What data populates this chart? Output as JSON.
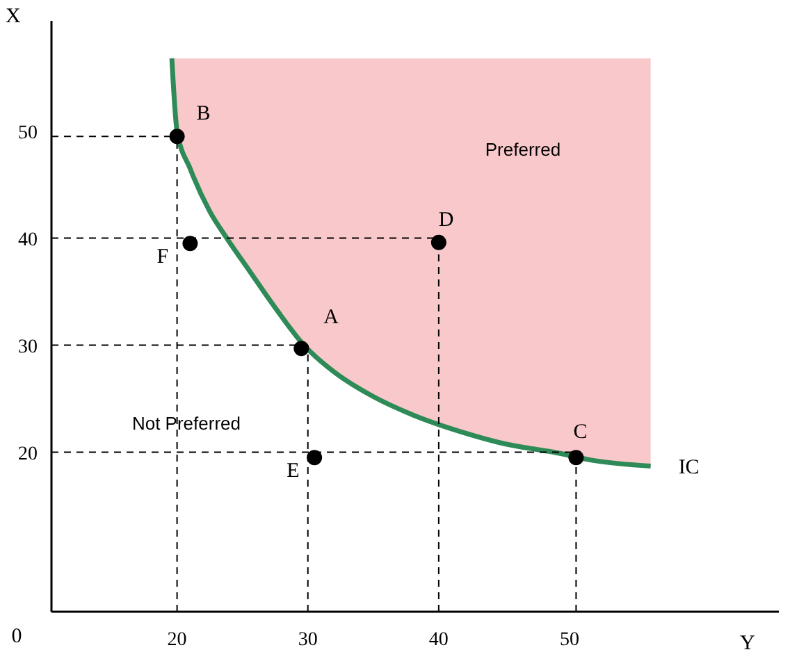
{
  "chart_data": {
    "type": "line",
    "xlabel": "Y",
    "ylabel": "X",
    "xlim": [
      10.4,
      66
    ],
    "ylim": [
      5.1,
      60.3
    ],
    "xticks": [
      20,
      30,
      40,
      50
    ],
    "yticks": [
      20,
      30,
      40,
      50
    ],
    "grid": false,
    "legend": false,
    "series": [
      {
        "color": "#2e8b57",
        "x": [
          19.6,
          20,
          21,
          22.5,
          23.8,
          25.5,
          27.5,
          29.7,
          32,
          35,
          38,
          42,
          45,
          48.8,
          52,
          56.2
        ],
        "values": [
          56.8,
          50,
          46.5,
          42.5,
          40,
          37,
          33.5,
          30,
          27.5,
          25.2,
          23.5,
          21.8,
          20.8,
          20,
          19.2,
          18.7
        ],
        "lower": [
          56.8,
          50,
          46.5,
          42.5,
          40,
          37,
          33.5,
          30,
          27.5,
          25.2,
          23.5,
          21.8,
          20.8,
          20,
          19.2,
          18.7
        ],
        "upper": [
          56.8,
          56.8,
          56.8,
          56.8,
          56.8,
          56.8,
          56.8,
          56.8,
          56.8,
          56.8,
          56.8,
          56.8,
          56.8,
          56.8,
          56.8,
          56.8
        ]
      },
      {
        "type": "line",
        "color": "#000000",
        "line_style": "dashed",
        "marker": "none",
        "x": [
          10.4,
          20
        ],
        "values": [
          49.5,
          49.5
        ]
      },
      {
        "type": "line",
        "color": "#000000",
        "line_style": "dashed",
        "marker": "none",
        "x": [
          10.4,
          40
        ],
        "values": [
          40,
          40
        ]
      },
      {
        "type": "line",
        "color": "#000000",
        "line_style": "dashed",
        "marker": "none",
        "x": [
          10.4,
          30
        ],
        "values": [
          30,
          30
        ]
      },
      {
        "type": "line",
        "color": "#000000",
        "line_style": "dashed",
        "marker": "none",
        "x": [
          10.4,
          50.5
        ],
        "values": [
          20,
          20
        ]
      },
      {
        "type": "line",
        "color": "#000000",
        "line_style": "dashed",
        "marker": "none",
        "x": [
          20,
          20
        ],
        "values": [
          5.1,
          49.5
        ]
      },
      {
        "type": "line",
        "color": "#000000",
        "line_style": "dashed",
        "marker": "none",
        "x": [
          30,
          30
        ],
        "values": [
          5.1,
          30
        ]
      },
      {
        "type": "line",
        "color": "#000000",
        "line_style": "dashed",
        "marker": "none",
        "x": [
          40,
          40
        ],
        "values": [
          5.1,
          40
        ]
      },
      {
        "type": "line",
        "color": "#000000",
        "line_style": "dashed",
        "marker": "none",
        "x": [
          50.5,
          50.5
        ],
        "values": [
          5.1,
          20
        ]
      },
      {
        "type": "scatter",
        "color": "#000000",
        "marker": "circle",
        "x": [
          20,
          21,
          40,
          29.5,
          30.5,
          50.5
        ],
        "values": [
          49.5,
          39.5,
          39.6,
          29.7,
          19.5,
          19.5
        ]
      }
    ],
    "annotations": [
      {
        "text": "B",
        "x": 20,
        "y": 49.5
      },
      {
        "text": "F",
        "x": 21,
        "y": 39.5
      },
      {
        "text": "D",
        "x": 40,
        "y": 39.6
      },
      {
        "text": "A",
        "x": 29.5,
        "y": 29.7
      },
      {
        "text": "E",
        "x": 30.5,
        "y": 19.5
      },
      {
        "text": "C",
        "x": 50.5,
        "y": 19.5
      },
      {
        "text": "IC",
        "x": 56.2,
        "y": 18.7
      },
      "Preferred",
      "Not Preferred",
      "0"
    ]
  }
}
